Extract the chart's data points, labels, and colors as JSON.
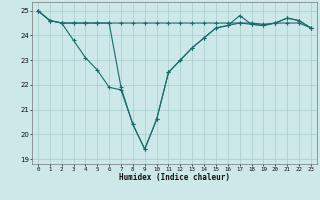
{
  "xlabel": "Humidex (Indice chaleur)",
  "background_color": "#cce8e8",
  "grid_color": "#aacccc",
  "line_color": "#1a6b6b",
  "xlim": [
    -0.5,
    23.5
  ],
  "ylim": [
    18.8,
    25.35
  ],
  "yticks": [
    19,
    20,
    21,
    22,
    23,
    24,
    25
  ],
  "xticks": [
    0,
    1,
    2,
    3,
    4,
    5,
    6,
    7,
    8,
    9,
    10,
    11,
    12,
    13,
    14,
    15,
    16,
    17,
    18,
    19,
    20,
    21,
    22,
    23
  ],
  "hours": [
    0,
    1,
    2,
    3,
    4,
    5,
    6,
    7,
    8,
    9,
    10,
    11,
    12,
    13,
    14,
    15,
    16,
    17,
    18,
    19,
    20,
    21,
    22,
    23
  ],
  "line1": [
    25.0,
    24.6,
    24.5,
    24.5,
    24.5,
    24.5,
    24.5,
    24.5,
    24.5,
    24.5,
    24.5,
    24.5,
    24.5,
    24.5,
    24.5,
    24.5,
    24.5,
    24.5,
    24.5,
    24.45,
    24.5,
    24.5,
    24.5,
    24.3
  ],
  "line2": [
    25.0,
    24.6,
    24.5,
    23.8,
    23.1,
    22.6,
    21.9,
    21.8,
    20.4,
    19.4,
    20.6,
    22.5,
    23.0,
    23.5,
    23.9,
    24.3,
    24.4,
    24.5,
    24.45,
    24.4,
    24.5,
    24.7,
    24.6,
    24.3
  ],
  "line3": [
    25.0,
    24.6,
    24.5,
    24.5,
    24.5,
    24.5,
    24.5,
    21.9,
    20.4,
    19.4,
    20.6,
    22.5,
    23.0,
    23.5,
    23.9,
    24.3,
    24.4,
    24.8,
    24.45,
    24.4,
    24.5,
    24.7,
    24.6,
    24.3
  ]
}
